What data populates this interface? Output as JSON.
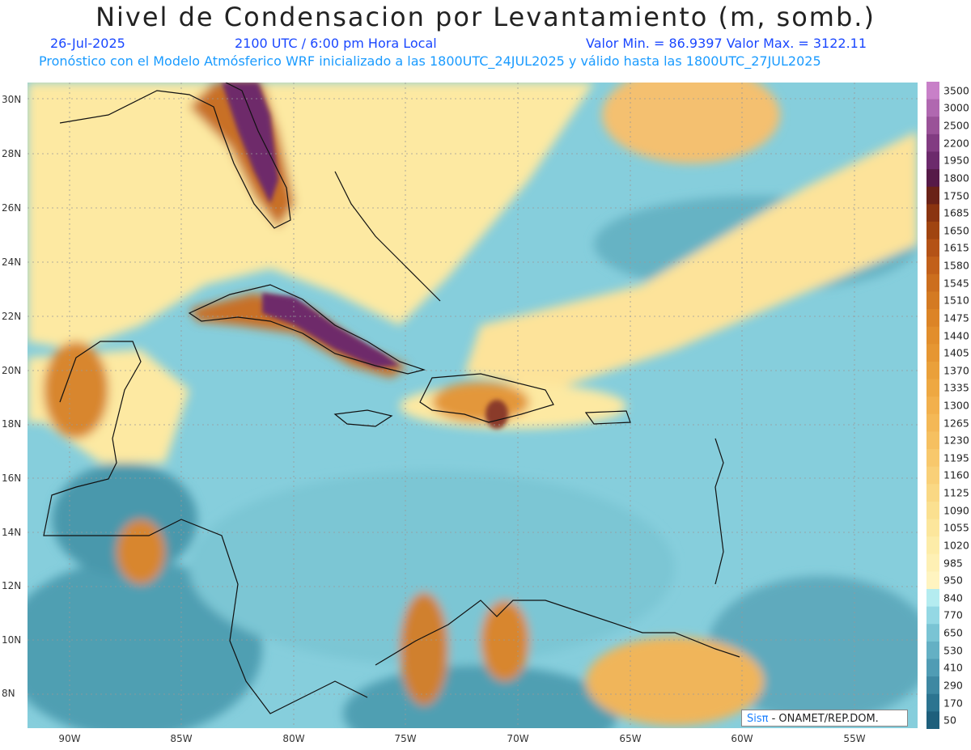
{
  "header": {
    "title": "Nivel de Condensacion por Levantamiento (m, somb.)",
    "date": "26-Jul-2025",
    "time": "2100 UTC / 6:00 pm Hora Local",
    "stats": "Valor Min. = 86.9397   Valor Max. = 3122.11",
    "model_line": "Pronóstico con el Modelo Atmósferico WRF inicializado a las 1800UTC_24JUL2025 y válido hasta las  1800UTC_27JUL2025"
  },
  "axes": {
    "lat_labels": [
      "30N",
      "28N",
      "26N",
      "24N",
      "22N",
      "20N",
      "18N",
      "16N",
      "14N",
      "12N",
      "10N",
      "8N"
    ],
    "lon_labels": [
      "90W",
      "85W",
      "80W",
      "75W",
      "70W",
      "65W",
      "60W",
      "55W"
    ]
  },
  "colorbar": {
    "labels": [
      "3500",
      "3000",
      "2500",
      "2200",
      "1950",
      "1800",
      "1750",
      "1685",
      "1650",
      "1615",
      "1580",
      "1545",
      "1510",
      "1475",
      "1440",
      "1405",
      "1370",
      "1335",
      "1300",
      "1265",
      "1230",
      "1195",
      "1160",
      "1125",
      "1090",
      "1055",
      "1020",
      "985",
      "950",
      "840",
      "770",
      "650",
      "530",
      "410",
      "290",
      "170",
      "50"
    ],
    "colors": [
      "#c880c8",
      "#b068b0",
      "#9a5298",
      "#823c82",
      "#6c2a6c",
      "#561a48",
      "#6a2218",
      "#8a3410",
      "#a04410",
      "#b45216",
      "#c2601a",
      "#cc6e1e",
      "#d47a22",
      "#dc8426",
      "#e28e2c",
      "#e69632",
      "#eaa03a",
      "#eea842",
      "#f2b04c",
      "#f4b856",
      "#f6c060",
      "#f8c86c",
      "#f9d078",
      "#fad884",
      "#fbe090",
      "#fce69c",
      "#fdeca8",
      "#fef0b4",
      "#fff4c0",
      "#b4ecf0",
      "#94d8e4",
      "#7ac4d4",
      "#64b0c4",
      "#509cb4",
      "#3e88a2",
      "#2c7490",
      "#1e5f7c"
    ],
    "threshold_labels": [
      "3500",
      "3000",
      "2500",
      "2200",
      "1950",
      "1800",
      "1750",
      "1685",
      "1650",
      "1615",
      "1580",
      "1545",
      "1510",
      "1475",
      "1440",
      "1405",
      "1370",
      "1335",
      "1300",
      "1265",
      "1230",
      "1195",
      "1160",
      "1125",
      "1090",
      "1055",
      "1020",
      "985",
      "950",
      "840",
      "770",
      "650",
      "530",
      "410",
      "290",
      "170",
      "50"
    ]
  },
  "credit": {
    "sis": "Sisπ",
    "org": " - ONAMET/REP.DOM."
  },
  "colors": {
    "land_high": "#6a2a6a",
    "land_mid": "#d07a2a",
    "sea_low": "#8fd4e0",
    "sea_deep": "#5aa6b8",
    "coast": "#111111"
  }
}
